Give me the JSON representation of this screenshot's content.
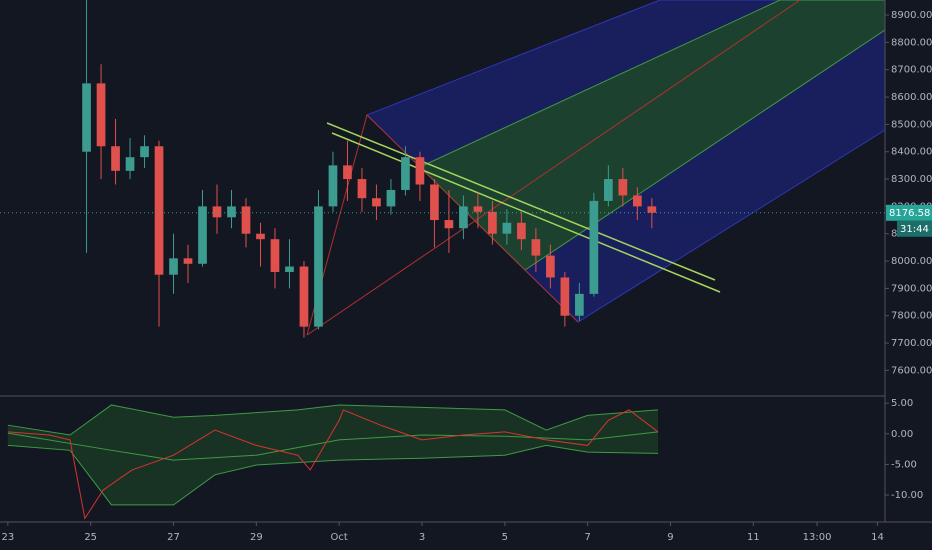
{
  "chart_data": [
    {
      "type": "candlestick",
      "x": [
        1.9,
        2.25,
        2.6,
        2.95,
        3.3,
        3.65,
        4.0,
        4.35,
        4.7,
        5.05,
        5.4,
        5.75,
        6.1,
        6.45,
        6.8,
        7.15,
        7.5,
        7.85,
        8.2,
        8.55,
        8.9,
        9.25,
        9.6,
        9.95,
        10.3,
        10.65,
        11.0,
        11.35,
        11.7,
        12.05,
        12.4,
        12.75,
        13.1,
        13.45,
        13.8,
        14.15,
        14.5,
        14.85,
        15.2,
        15.55
      ],
      "open": [
        8400,
        8650,
        8420,
        8330,
        8380,
        8420,
        7950,
        8010,
        7990,
        8200,
        8160,
        8200,
        8100,
        8080,
        7960,
        7980,
        7760,
        8200,
        8350,
        8300,
        8230,
        8200,
        8260,
        8380,
        8280,
        8150,
        8120,
        8200,
        8180,
        8100,
        8140,
        8080,
        8020,
        7940,
        7800,
        7880,
        8220,
        8300,
        8240,
        8200
      ],
      "high": [
        8955,
        8720,
        8520,
        8450,
        8460,
        8440,
        8100,
        8060,
        8260,
        8280,
        8260,
        8230,
        8140,
        8120,
        8080,
        8000,
        8260,
        8400,
        8440,
        8340,
        8280,
        8300,
        8420,
        8400,
        8300,
        8260,
        8240,
        8250,
        8220,
        8190,
        8180,
        8120,
        8060,
        7960,
        7920,
        8250,
        8350,
        8340,
        8270,
        8230
      ],
      "low": [
        8030,
        8300,
        8280,
        8300,
        8340,
        7760,
        7880,
        7920,
        7980,
        8100,
        8120,
        8050,
        7980,
        7900,
        7900,
        7720,
        7750,
        8180,
        8220,
        8180,
        8150,
        8170,
        8240,
        8220,
        8050,
        8030,
        8080,
        8120,
        8060,
        8060,
        8040,
        7960,
        7900,
        7760,
        7780,
        7870,
        8200,
        8200,
        8150,
        8120
      ],
      "close": [
        8650,
        8420,
        8330,
        8380,
        8420,
        7950,
        8010,
        7990,
        8200,
        8160,
        8200,
        8100,
        8080,
        7960,
        7980,
        7760,
        8200,
        8350,
        8300,
        8230,
        8200,
        8260,
        8380,
        8280,
        8150,
        8120,
        8200,
        8180,
        8100,
        8140,
        8080,
        8020,
        7940,
        7800,
        7880,
        8220,
        8300,
        8240,
        8200,
        8176.58
      ],
      "last_close_label": "8176.58",
      "countdown": "31:44",
      "up_color": "#3b9c8f",
      "down_color": "#e0504d",
      "xlim": [
        -0.19,
        21.18
      ],
      "xticks": [
        {
          "value": 0,
          "label": "23"
        },
        {
          "value": 2,
          "label": "25"
        },
        {
          "value": 4,
          "label": "27"
        },
        {
          "value": 6,
          "label": "29"
        },
        {
          "value": 8,
          "label": "Oct"
        },
        {
          "value": 10,
          "label": "3"
        },
        {
          "value": 12,
          "label": "5"
        },
        {
          "value": 14,
          "label": "7"
        },
        {
          "value": 16,
          "label": "9"
        },
        {
          "value": 18,
          "label": "11"
        },
        {
          "value": 19.54,
          "label": "13:00"
        },
        {
          "value": 21,
          "label": "14"
        }
      ],
      "ylim": [
        7510,
        8955
      ],
      "yticks": [
        {
          "value": 8900,
          "label": "8900.00"
        },
        {
          "value": 8800,
          "label": "8800.00"
        },
        {
          "value": 8700,
          "label": "8700.00"
        },
        {
          "value": 8600,
          "label": "8600.00"
        },
        {
          "value": 8500,
          "label": "8500.00"
        },
        {
          "value": 8400,
          "label": "8400.00"
        },
        {
          "value": 8300,
          "label": "8300.00"
        },
        {
          "value": 8200,
          "label": "8200.00"
        },
        {
          "value": 8100,
          "label": "8100.00"
        },
        {
          "value": 8000,
          "label": "8000.00"
        },
        {
          "value": 7900,
          "label": "7900.00"
        },
        {
          "value": 7800,
          "label": "7800.00"
        },
        {
          "value": 7700,
          "label": "7700.00"
        },
        {
          "value": 7600,
          "label": "7600.00"
        }
      ]
    },
    {
      "type": "line",
      "series": [
        {
          "color": "#3f9a45",
          "x": [
            0,
            1.5,
            2.5,
            4,
            5,
            7,
            8,
            10,
            12,
            13,
            14,
            15.7
          ],
          "values": [
            1.4,
            -0.2,
            4.7,
            2.7,
            3.0,
            3.9,
            4.7,
            4.3,
            3.9,
            0.6,
            3.0,
            3.9
          ]
        },
        {
          "color": "#3f9a45",
          "x": [
            0,
            2.5,
            4,
            6,
            8,
            10,
            12,
            14,
            15.7
          ],
          "values": [
            0.1,
            -2.7,
            -4.3,
            -3.5,
            -1.0,
            -0.2,
            -0.4,
            -1.0,
            0.3
          ]
        },
        {
          "color": "#3f9a45",
          "x": [
            0,
            1.5,
            2.5,
            4,
            5,
            6,
            8,
            10,
            12,
            13,
            14,
            15.7
          ],
          "values": [
            -1.9,
            -2.7,
            -11.6,
            -11.6,
            -6.7,
            -5.1,
            -4.3,
            -4.0,
            -3.5,
            -1.9,
            -3.0,
            -3.2
          ]
        },
        {
          "color": "#d8322f",
          "x": [
            0,
            1,
            1.5,
            1.86,
            2.3,
            3,
            4,
            5,
            6,
            7,
            7.3,
            8,
            8.1,
            9,
            10,
            11,
            12,
            13,
            14,
            14.5,
            15,
            15.7
          ],
          "values": [
            0.3,
            -0.2,
            -1.0,
            -13.8,
            -9.2,
            -5.9,
            -3.5,
            0.6,
            -1.9,
            -3.5,
            -5.9,
            2.2,
            3.9,
            1.4,
            -1.0,
            -0.2,
            0.3,
            -1.0,
            -1.9,
            2.2,
            3.9,
            0.3
          ]
        }
      ],
      "ylim": [
        -14.4,
        6
      ],
      "yticks": [
        {
          "value": 5,
          "label": "5.00"
        },
        {
          "value": 0,
          "label": "0.00"
        },
        {
          "value": -5,
          "label": "-5.00"
        },
        {
          "value": -10,
          "label": "-10.00"
        }
      ]
    }
  ]
}
